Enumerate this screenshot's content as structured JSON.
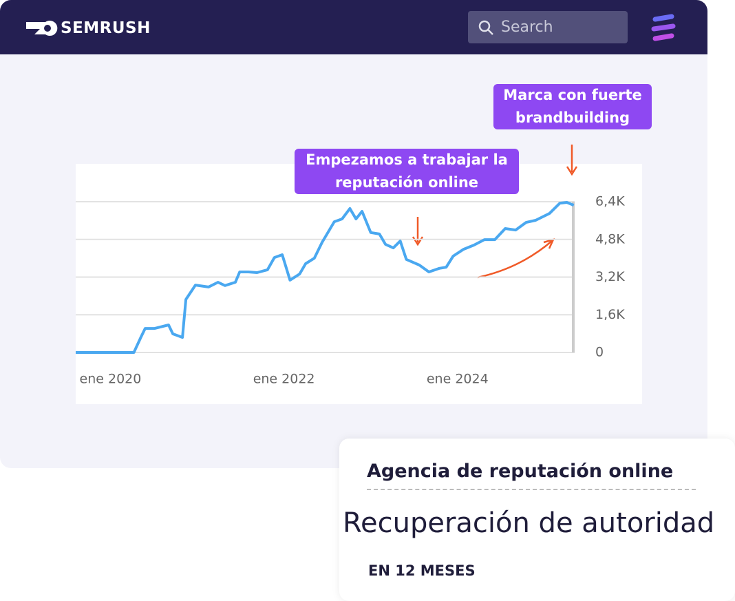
{
  "header": {
    "logo": "SEMRUSH",
    "search_placeholder": "Search"
  },
  "chart_data": {
    "type": "line",
    "x": [
      2019.6,
      2020.27,
      2020.35,
      2020.4,
      2020.51,
      2020.67,
      2020.72,
      2020.83,
      2020.87,
      2020.98,
      2021.13,
      2021.24,
      2021.32,
      2021.44,
      2021.49,
      2021.59,
      2021.69,
      2021.81,
      2021.89,
      2021.98,
      2022.07,
      2022.18,
      2022.25,
      2022.35,
      2022.44,
      2022.58,
      2022.67,
      2022.76,
      2022.83,
      2022.9,
      2023.0,
      2023.1,
      2023.17,
      2023.26,
      2023.34,
      2023.41,
      2023.56,
      2023.67,
      2023.79,
      2023.87,
      2023.95,
      2024.07,
      2024.19,
      2024.31,
      2024.43,
      2024.55,
      2024.67,
      2024.79,
      2024.9,
      2025.06,
      2025.18,
      2025.26,
      2025.34
    ],
    "values": [
      0,
      0,
      640,
      1020,
      1020,
      1170,
      790,
      640,
      2250,
      2860,
      2780,
      2980,
      2840,
      2980,
      3420,
      3420,
      3390,
      3510,
      4030,
      4150,
      3070,
      3330,
      3770,
      4000,
      4680,
      5550,
      5670,
      6110,
      5670,
      5990,
      5090,
      5030,
      4590,
      4440,
      4730,
      3950,
      3710,
      3420,
      3570,
      3620,
      4090,
      4380,
      4560,
      4790,
      4790,
      5260,
      5200,
      5520,
      5610,
      5900,
      6340,
      6370,
      6250
    ],
    "color": "#4aa8f0",
    "xlim": [
      2019.6,
      2025.35
    ],
    "xticks": [
      {
        "value": 2020,
        "label": "ene 2020"
      },
      {
        "value": 2022,
        "label": "ene 2022"
      },
      {
        "value": 2024,
        "label": "ene 2024"
      }
    ],
    "ylim": [
      0,
      6400
    ],
    "yticks": [
      0,
      {
        "value": 1600,
        "label": "1,6K"
      },
      {
        "value": 3200,
        "label": "3,2K"
      },
      {
        "value": 4800,
        "label": "4,8K"
      },
      {
        "value": 6400,
        "label": "6,4K"
      }
    ],
    "grid": true
  },
  "annotations": [
    "Empezamos a trabajar la reputación online",
    "Marca con fuerte brandbuilding"
  ],
  "card": {
    "title": "Agencia de reputación online",
    "headline": "Recuperación de autoridad",
    "subtitle": "EN 12 MESES"
  }
}
